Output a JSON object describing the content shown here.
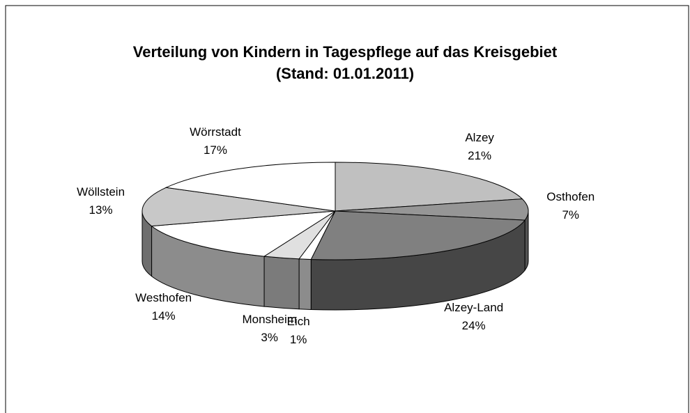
{
  "chart_data": {
    "type": "pie",
    "title": "Verteilung von Kindern in Tagespflege auf das Kreisgebiet",
    "subtitle": "(Stand: 01.01.2011)",
    "categories": [
      "Alzey",
      "Osthofen",
      "Alzey-Land",
      "Eich",
      "Monsheim",
      "Westhofen",
      "Wöllstein",
      "Wörrstadt"
    ],
    "values": [
      21,
      7,
      24,
      1,
      3,
      14,
      13,
      17
    ],
    "value_labels": [
      "21%",
      "7%",
      "24%",
      "1%",
      "3%",
      "14%",
      "13%",
      "17%"
    ],
    "colors": [
      "#c0c0c0",
      "#969696",
      "#808080",
      "#ffffff",
      "#e0e0e0",
      "#ffffff",
      "#c8c8c8",
      "#ffffff"
    ]
  }
}
